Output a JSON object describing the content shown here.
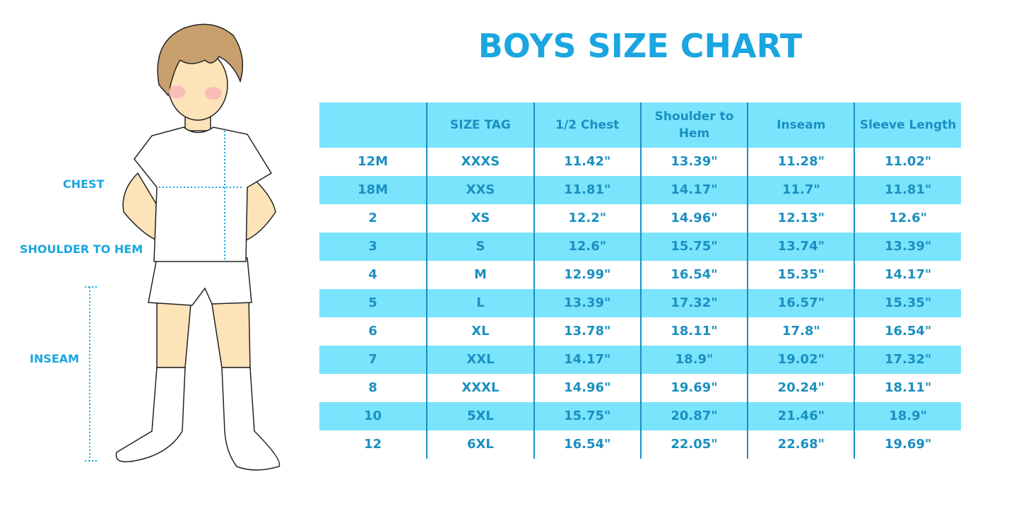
{
  "title": "BOYS SIZE CHART",
  "figure_labels": {
    "chest": "CHEST",
    "shoulder_to_hem": "SHOULDER TO HEM",
    "inseam": "INSEAM"
  },
  "colors": {
    "accent": "#1aa6e0",
    "header_bg": "#7ae4fd",
    "text": "#1a8fc0"
  },
  "table": {
    "headers": [
      "",
      "SIZE TAG",
      "1/2 Chest",
      "Shoulder to Hem",
      "Inseam",
      "Sleeve Length"
    ],
    "rows": [
      [
        "12M",
        "XXXS",
        "11.42\"",
        "13.39\"",
        "11.28\"",
        "11.02\""
      ],
      [
        "18M",
        "XXS",
        "11.81\"",
        "14.17\"",
        "11.7\"",
        "11.81\""
      ],
      [
        "2",
        "XS",
        "12.2\"",
        "14.96\"",
        "12.13\"",
        "12.6\""
      ],
      [
        "3",
        "S",
        "12.6\"",
        "15.75\"",
        "13.74\"",
        "13.39\""
      ],
      [
        "4",
        "M",
        "12.99\"",
        "16.54\"",
        "15.35\"",
        "14.17\""
      ],
      [
        "5",
        "L",
        "13.39\"",
        "17.32\"",
        "16.57\"",
        "15.35\""
      ],
      [
        "6",
        "XL",
        "13.78\"",
        "18.11\"",
        "17.8\"",
        "16.54\""
      ],
      [
        "7",
        "XXL",
        "14.17\"",
        "18.9\"",
        "19.02\"",
        "17.32\""
      ],
      [
        "8",
        "XXXL",
        "14.96\"",
        "19.69\"",
        "20.24\"",
        "18.11\""
      ],
      [
        "10",
        "5XL",
        "15.75\"",
        "20.87\"",
        "21.46\"",
        "18.9\""
      ],
      [
        "12",
        "6XL",
        "16.54\"",
        "22.05\"",
        "22.68\"",
        "19.69\""
      ]
    ]
  }
}
